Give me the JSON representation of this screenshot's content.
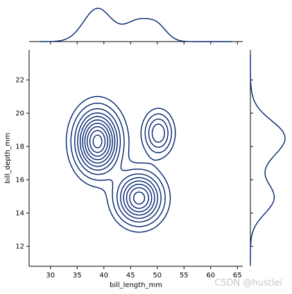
{
  "chart_data": {
    "type": "contour",
    "xlabel": "bill_length_mm",
    "ylabel": "bill_depth_mm",
    "xlim": [
      26.0,
      66.0
    ],
    "ylim": [
      10.8,
      23.8
    ],
    "xticks": [
      30,
      35,
      40,
      45,
      50,
      55,
      60,
      65
    ],
    "yticks": [
      12,
      14,
      16,
      18,
      20,
      22
    ],
    "color": "#00216e",
    "density_components": [
      {
        "mean_x": 38.8,
        "mean_y": 18.3,
        "sd_x": 2.6,
        "sd_y": 1.2,
        "weight": 0.44
      },
      {
        "mean_x": 46.6,
        "mean_y": 14.9,
        "sd_x": 2.7,
        "sd_y": 0.95,
        "weight": 0.36
      },
      {
        "mean_x": 50.2,
        "mean_y": 18.8,
        "sd_x": 1.7,
        "sd_y": 0.8,
        "weight": 0.2
      }
    ],
    "contour_levels": [
      0.08,
      0.16,
      0.26,
      0.36,
      0.46,
      0.56,
      0.66,
      0.76,
      0.86,
      0.95
    ]
  },
  "watermark": "CSDN @hustlei"
}
